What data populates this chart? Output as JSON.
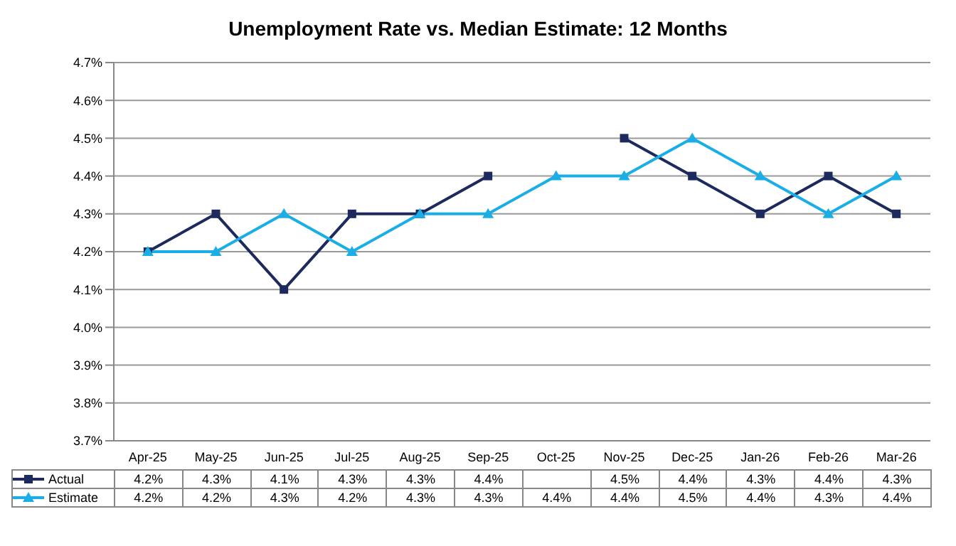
{
  "chart_data": {
    "type": "line",
    "title": "Unemployment Rate vs. Median Estimate: 12 Months",
    "categories": [
      "Apr-25",
      "May-25",
      "Jun-25",
      "Jul-25",
      "Aug-25",
      "Sep-25",
      "Oct-25",
      "Nov-25",
      "Dec-25",
      "Jan-26",
      "Feb-26",
      "Mar-26"
    ],
    "series": [
      {
        "name": "Actual",
        "color": "#1c2a5e",
        "marker": "square",
        "values": [
          4.2,
          4.3,
          4.1,
          4.3,
          4.3,
          4.4,
          null,
          4.5,
          4.4,
          4.3,
          4.4,
          4.3
        ],
        "value_labels": [
          "4.2%",
          "4.3%",
          "4.1%",
          "4.3%",
          "4.3%",
          "4.4%",
          null,
          "4.5%",
          "4.4%",
          "4.3%",
          "4.4%",
          "4.3%"
        ]
      },
      {
        "name": "Estimate",
        "color": "#1aaee6",
        "marker": "triangle",
        "values": [
          4.2,
          4.2,
          4.3,
          4.2,
          4.3,
          4.3,
          4.4,
          4.4,
          4.5,
          4.4,
          4.3,
          4.4
        ],
        "value_labels": [
          "4.2%",
          "4.2%",
          "4.3%",
          "4.2%",
          "4.3%",
          "4.3%",
          "4.4%",
          "4.4%",
          "4.5%",
          "4.4%",
          "4.3%",
          "4.4%"
        ]
      }
    ],
    "ylim": [
      3.7,
      4.7
    ],
    "yticks": [
      {
        "value": 3.7,
        "label": "3.7%"
      },
      {
        "value": 3.8,
        "label": "3.8%"
      },
      {
        "value": 3.9,
        "label": "3.9%"
      },
      {
        "value": 4.0,
        "label": "4.0%"
      },
      {
        "value": 4.1,
        "label": "4.1%"
      },
      {
        "value": 4.2,
        "label": "4.2%"
      },
      {
        "value": 4.3,
        "label": "4.3%"
      },
      {
        "value": 4.4,
        "label": "4.4%"
      },
      {
        "value": 4.5,
        "label": "4.5%"
      },
      {
        "value": 4.6,
        "label": "4.6%"
      },
      {
        "value": 4.7,
        "label": "4.7%"
      }
    ],
    "grid": "y",
    "legend": "bottom",
    "line_style": "solid"
  }
}
